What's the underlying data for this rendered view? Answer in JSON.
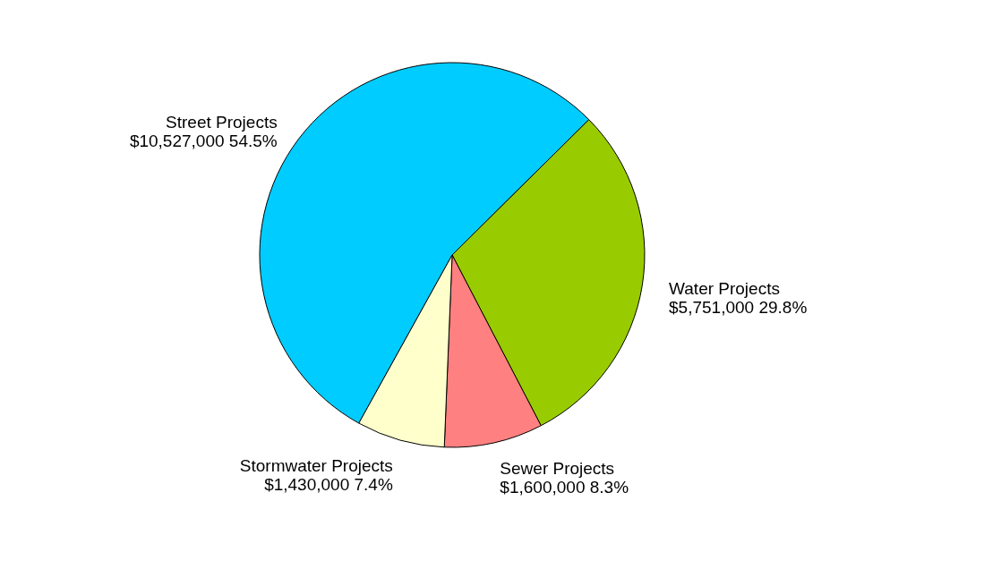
{
  "chart_data": {
    "type": "pie",
    "categories": [
      "Street Projects",
      "Water Projects",
      "Sewer Projects",
      "Stormwater Projects"
    ],
    "values": [
      10527000,
      5751000,
      1600000,
      1430000
    ],
    "colors": [
      "#00ccff",
      "#99cc00",
      "#ff8080",
      "#ffffcc"
    ],
    "value_labels": [
      "$10,527,000  54.5%",
      "$5,751,000  29.8%",
      "$1,600,000  8.3%",
      "$1,430,000  7.4%"
    ],
    "legend": false
  }
}
